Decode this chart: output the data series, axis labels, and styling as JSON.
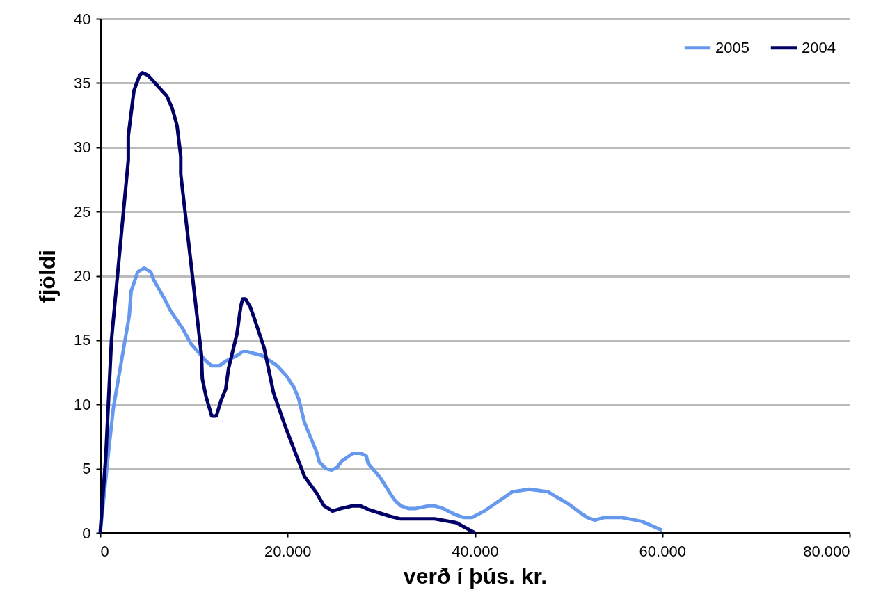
{
  "chart_data": {
    "type": "line",
    "xlabel": "verð í þús. kr.",
    "ylabel": "fjöldi",
    "xlim": [
      0,
      80000
    ],
    "xticks": [
      {
        "value": 0,
        "label": "0"
      },
      {
        "value": 20000,
        "label": "20.000"
      },
      {
        "value": 40000,
        "label": "40.000"
      },
      {
        "value": 60000,
        "label": "60.000"
      },
      {
        "value": 80000,
        "label": "80.000"
      }
    ],
    "ylim": [
      0,
      40
    ],
    "yticks": [
      0,
      5,
      10,
      15,
      20,
      25,
      30,
      35,
      40
    ],
    "grid": "y",
    "legend": "top right",
    "line_style": "solid",
    "marker": "none",
    "series": [
      {
        "name": "2005",
        "color": "#6699ee",
        "x": [
          0,
          900,
          1400,
          3100,
          3300,
          4000,
          4700,
          5400,
          5700,
          6800,
          7500,
          8800,
          9700,
          11400,
          11900,
          12700,
          13500,
          14600,
          15200,
          15700,
          17300,
          17900,
          18900,
          19900,
          20700,
          21200,
          21800,
          23100,
          23400,
          24100,
          24700,
          25300,
          25800,
          27000,
          27800,
          28400,
          28600,
          29900,
          31100,
          31500,
          32100,
          32900,
          33700,
          35000,
          35700,
          36600,
          38000,
          38800,
          39700,
          41000,
          41800,
          44000,
          45800,
          47800,
          48700,
          49900,
          51000,
          52000,
          52800,
          53800,
          55700,
          57800,
          60000
        ],
        "values": [
          0,
          6.4,
          9.7,
          16.9,
          18.8,
          20.3,
          20.6,
          20.3,
          19.7,
          18.3,
          17.3,
          15.9,
          14.7,
          13.3,
          13.0,
          13.0,
          13.4,
          13.8,
          14.1,
          14.1,
          13.8,
          13.5,
          13.0,
          12.2,
          11.3,
          10.4,
          8.6,
          6.3,
          5.5,
          5.0,
          4.9,
          5.1,
          5.6,
          6.2,
          6.2,
          6.0,
          5.4,
          4.3,
          2.9,
          2.5,
          2.1,
          1.9,
          1.9,
          2.1,
          2.1,
          1.9,
          1.4,
          1.2,
          1.2,
          1.7,
          2.1,
          3.2,
          3.4,
          3.2,
          2.8,
          2.3,
          1.7,
          1.2,
          1.0,
          1.2,
          1.2,
          0.9,
          0.2
        ]
      },
      {
        "name": "2004",
        "color": "#000066",
        "x": [
          0,
          600,
          1200,
          2300,
          3000,
          3000,
          3600,
          4200,
          4500,
          5100,
          7100,
          7700,
          8200,
          8600,
          8600,
          9700,
          10800,
          10900,
          11300,
          11900,
          12400,
          12900,
          13400,
          13700,
          14600,
          14900,
          15000,
          15200,
          15500,
          16000,
          16400,
          17500,
          18500,
          19800,
          20800,
          21800,
          23100,
          23900,
          24800,
          25700,
          26900,
          27800,
          28700,
          30900,
          32000,
          35700,
          38000,
          40000
        ],
        "values": [
          0,
          6.0,
          15,
          23.6,
          29,
          30.9,
          34.4,
          35.6,
          35.8,
          35.6,
          34,
          33,
          31.7,
          29.3,
          27.9,
          20.9,
          13.9,
          12,
          10.6,
          9.1,
          9.1,
          10.3,
          11.2,
          12.8,
          15.5,
          17.1,
          17.6,
          18.2,
          18.2,
          17.6,
          16.8,
          14.4,
          10.9,
          8.2,
          6.3,
          4.4,
          3.1,
          2.1,
          1.7,
          1.9,
          2.1,
          2.1,
          1.8,
          1.3,
          1.1,
          1.1,
          0.8,
          0
        ]
      }
    ]
  }
}
